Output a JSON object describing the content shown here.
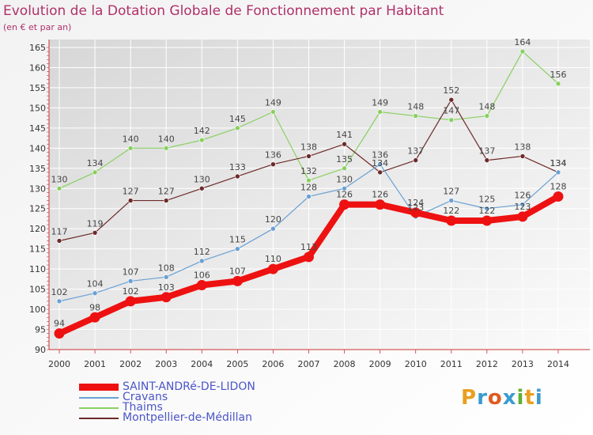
{
  "title": "Evolution de la Dotation Globale de Fonctionnement par Habitant",
  "subtitle": "(en € et par an)",
  "logo": {
    "text": "Proxiti",
    "colors": [
      "#e8a020",
      "#3a9bd0",
      "#e05a20",
      "#3a9bd0",
      "#60b030",
      "#e8a020",
      "#3a9bd0"
    ]
  },
  "chart_data": {
    "type": "line",
    "title": "Evolution de la Dotation Globale de Fonctionnement par Habitant",
    "ylabel": "(en € et par an)",
    "xlabel": "",
    "x": [
      "2000",
      "2001",
      "2002",
      "2003",
      "2004",
      "2005",
      "2006",
      "2007",
      "2008",
      "2009",
      "2010",
      "2011",
      "2012",
      "2013",
      "2014"
    ],
    "ylim": [
      90,
      165
    ],
    "yticks": [
      90,
      95,
      100,
      105,
      110,
      115,
      120,
      125,
      130,
      135,
      140,
      145,
      150,
      155,
      160,
      165
    ],
    "grid": true,
    "series": [
      {
        "name": "Thaims",
        "color": "#88d060",
        "emphasis": false,
        "values": [
          130,
          134,
          140,
          140,
          142,
          145,
          149,
          132,
          135,
          149,
          148,
          147,
          148,
          164,
          156
        ]
      },
      {
        "name": "Montpellier-de-Médillan",
        "color": "#6e2a2a",
        "emphasis": false,
        "values": [
          117,
          119,
          127,
          127,
          130,
          133,
          136,
          138,
          141,
          134,
          137,
          152,
          137,
          138,
          134
        ]
      },
      {
        "name": "Cravans",
        "color": "#6aa0d4",
        "emphasis": false,
        "values": [
          102,
          104,
          107,
          108,
          112,
          115,
          120,
          128,
          130,
          136,
          123,
          127,
          125,
          126,
          134
        ]
      },
      {
        "name": "SAINT-ANDRé-DE-LIDON",
        "color": "#ee1111",
        "emphasis": true,
        "values": [
          94,
          98,
          102,
          103,
          106,
          107,
          110,
          113,
          126,
          126,
          124,
          122,
          122,
          123,
          128
        ]
      }
    ],
    "legend": [
      "SAINT-ANDRé-DE-LIDON",
      "Cravans",
      "Thaims",
      "Montpellier-de-Médillan"
    ]
  }
}
